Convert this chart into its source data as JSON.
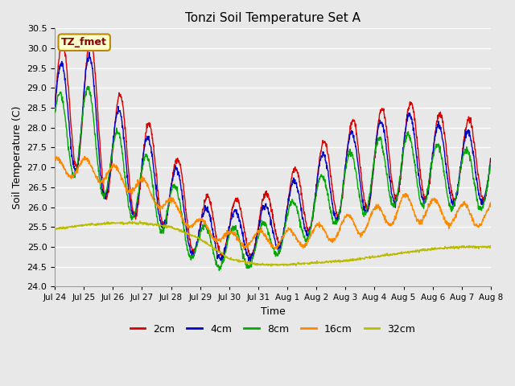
{
  "title": "Tonzi Soil Temperature Set A",
  "xlabel": "Time",
  "ylabel": "Soil Temperature (C)",
  "ylim": [
    24.0,
    30.5
  ],
  "background_color": "#e8e8e8",
  "grid_color": "#ffffff",
  "annotation_text": "TZ_fmet",
  "annotation_bg": "#ffffcc",
  "annotation_border": "#bb8800",
  "annotation_text_color": "#880000",
  "colors": {
    "2cm": "#dd0000",
    "4cm": "#0000cc",
    "8cm": "#00aa00",
    "16cm": "#ff8800",
    "32cm": "#bbbb00"
  },
  "tick_labels": [
    "Jul 24",
    "Jul 25",
    "Jul 26",
    "Jul 27",
    "Jul 28",
    "Jul 29",
    "Jul 30",
    "Jul 31",
    "Aug 1",
    "Aug 2",
    "Aug 3",
    "Aug 4",
    "Aug 5",
    "Aug 6",
    "Aug 7",
    "Aug 8"
  ],
  "yticks": [
    24.0,
    24.5,
    25.0,
    25.5,
    26.0,
    26.5,
    27.0,
    27.5,
    28.0,
    28.5,
    29.0,
    29.5,
    30.0,
    30.5
  ],
  "lw": 1.0
}
